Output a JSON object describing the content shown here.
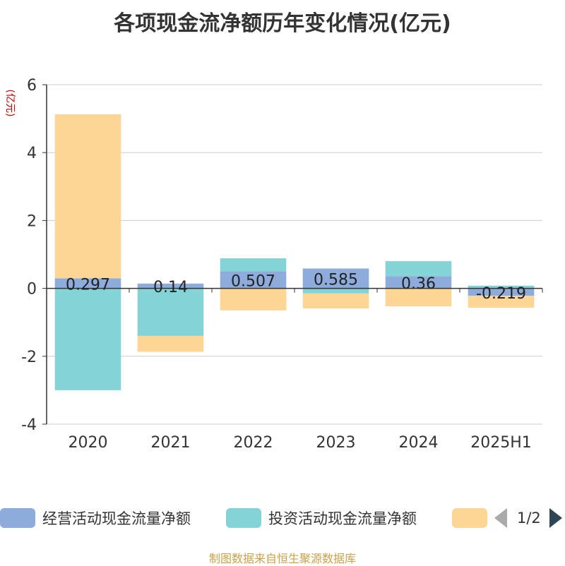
{
  "title": "各项现金流净额历年变化情况(亿元)",
  "source_note": "制图数据来自恒生聚源数据库",
  "legend": {
    "pager_text": "1/2"
  },
  "colors": {
    "operating": "#8eacdb",
    "investing": "#84d3d7",
    "financing": "#fdd696"
  },
  "chart_data": {
    "type": "bar",
    "stacked": true,
    "title": "各项现金流净额历年变化情况(亿元)",
    "ylabel": "(亿元)",
    "ylim": [
      -4,
      6
    ],
    "yticks": [
      -4,
      -2,
      0,
      2,
      4,
      6
    ],
    "grid": true,
    "legend_position": "bottom",
    "categories": [
      "2020",
      "2021",
      "2022",
      "2023",
      "2024",
      "2025H1"
    ],
    "series": [
      {
        "name": "经营活动现金流量净额",
        "color": "#8eacdb",
        "values": [
          0.297,
          0.14,
          0.507,
          0.585,
          0.36,
          -0.219
        ],
        "labels": [
          "0.297",
          "0.14",
          "0.507",
          "0.585",
          "0.36",
          "-0.219"
        ]
      },
      {
        "name": "投资活动现金流量净额",
        "color": "#84d3d7",
        "values": [
          -3.0,
          -1.4,
          0.38,
          -0.15,
          0.44,
          0.08
        ]
      },
      {
        "name": "",
        "color": "#fdd696",
        "values": [
          4.83,
          -0.47,
          -0.65,
          -0.44,
          -0.53,
          -0.35
        ]
      }
    ]
  }
}
